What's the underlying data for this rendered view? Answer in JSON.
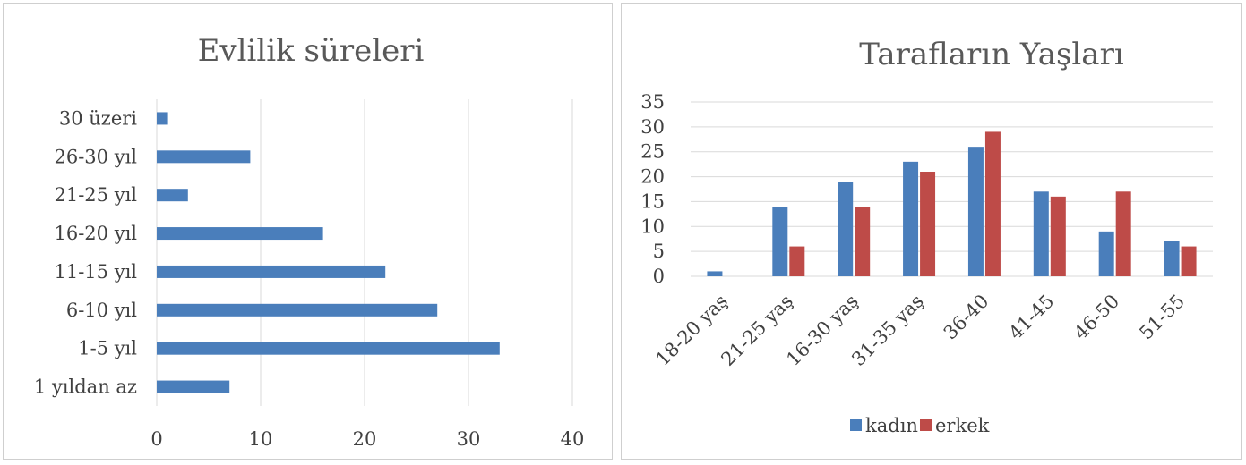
{
  "chart_data": [
    {
      "type": "bar",
      "orientation": "horizontal",
      "title": "Evlilik süreleri",
      "categories": [
        "1 yıldan az",
        "1-5 yıl",
        "6-10 yıl",
        "11-15 yıl",
        "16-20 yıl",
        "21-25 yıl",
        "26-30 yıl",
        "30 üzeri"
      ],
      "series": [
        {
          "values": [
            7,
            33,
            27,
            22,
            16,
            3,
            9,
            1
          ],
          "color": "#4a7ebb"
        }
      ],
      "xlim": [
        0,
        40
      ],
      "x_ticks": [
        "0",
        "10",
        "20",
        "30",
        "40"
      ],
      "grid": "vertical"
    },
    {
      "type": "bar",
      "orientation": "vertical",
      "title": "Tarafların Yaşları",
      "categories": [
        "18-20 yaş",
        "21-25 yaş",
        "16-30 yaş",
        "31-35 yaş",
        "36-40",
        "41-45",
        "46-50",
        "51-55"
      ],
      "series": [
        {
          "name": "kadın",
          "values": [
            1,
            14,
            19,
            23,
            26,
            17,
            9,
            7
          ],
          "color": "#4a7ebb"
        },
        {
          "name": "erkek",
          "values": [
            0,
            6,
            14,
            21,
            29,
            16,
            17,
            6
          ],
          "color": "#be4b48"
        }
      ],
      "ylim": [
        0,
        35
      ],
      "y_ticks": [
        "0",
        "5",
        "10",
        "15",
        "20",
        "25",
        "30",
        "35"
      ],
      "grid": "horizontal",
      "legend": "bottom"
    }
  ]
}
